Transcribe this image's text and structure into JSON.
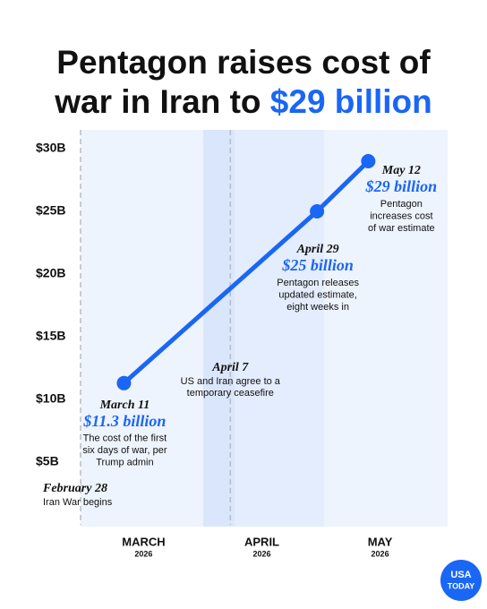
{
  "chart_data": {
    "type": "line",
    "title_lines": [
      "Pentagon raises cost of",
      "war in Iran to"
    ],
    "title_highlight": "$29 billion",
    "x": [
      "2026-03-11",
      "2026-04-29",
      "2026-05-12"
    ],
    "values": [
      11.3,
      25,
      29
    ],
    "value_labels": [
      "$11.3 billion",
      "$25 billion",
      "$29 billion"
    ],
    "point_labels": [
      "March 11",
      "April 29",
      "May 12"
    ],
    "point_notes": [
      [
        "The cost of the first",
        "six days of war, per",
        "Trump admin"
      ],
      [
        "Pentagon releases",
        "updated estimate,",
        "eight weeks in"
      ],
      [
        "Pentagon",
        "increases cost",
        "of war estimate"
      ]
    ],
    "events": [
      {
        "x": "2026-02-28",
        "label": "February 28",
        "text": [
          "Iran War begins"
        ]
      },
      {
        "x": "2026-04-07",
        "label": "April 7",
        "text": [
          "US and Iran agree to a",
          "temporary ceasefire"
        ]
      }
    ],
    "color": "#1a66f5",
    "xlim": [
      "2026-02-28",
      "2026-05-31"
    ],
    "xticks": [
      {
        "value": "2026-03-16",
        "label": "MARCH"
      },
      {
        "value": "2026-04-15",
        "label": "APRIL"
      },
      {
        "value": "2026-05-15",
        "label": "MAY"
      }
    ],
    "xtick_years": [
      "2026",
      "2026",
      "2026"
    ],
    "ylim": [
      0,
      31.5
    ],
    "yticks": [
      {
        "value": 5,
        "label": "$5B"
      },
      {
        "value": 10,
        "label": "$10B"
      },
      {
        "value": 15,
        "label": "$15B"
      },
      {
        "value": 20,
        "label": "$20B"
      },
      {
        "value": 25,
        "label": "$25B"
      },
      {
        "value": 30,
        "label": "$30B"
      }
    ],
    "logo": [
      "USA",
      "TODAY"
    ]
  }
}
